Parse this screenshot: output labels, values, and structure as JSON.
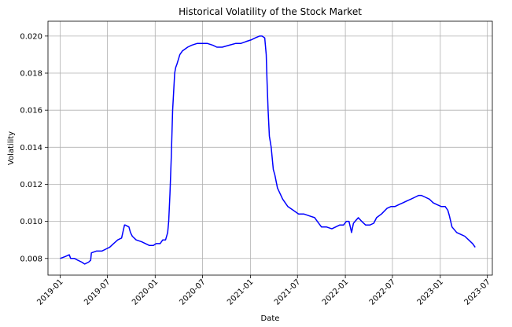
{
  "chart_data": {
    "type": "line",
    "title": "Historical Volatility of the Stock Market",
    "xlabel": "Date",
    "ylabel": "Volatility",
    "grid": true,
    "line_color": "#0000ff",
    "xlim": [
      "2018-11-15",
      "2023-07-20"
    ],
    "ylim": [
      0.0071,
      0.0208
    ],
    "x_ticks": [
      "2019-01",
      "2019-07",
      "2020-01",
      "2020-07",
      "2021-01",
      "2021-07",
      "2022-01",
      "2022-07",
      "2023-01",
      "2023-07"
    ],
    "y_ticks": [
      "0.008",
      "0.010",
      "0.012",
      "0.014",
      "0.016",
      "0.018",
      "0.020"
    ],
    "series": [
      {
        "x": [
          "2019-01-01",
          "2019-01-20",
          "2019-02-05",
          "2019-02-10",
          "2019-02-25",
          "2019-03-10",
          "2019-03-25",
          "2019-04-05",
          "2019-04-20",
          "2019-04-28",
          "2019-05-01",
          "2019-05-20",
          "2019-06-10",
          "2019-06-25",
          "2019-07-10",
          "2019-07-25",
          "2019-08-10",
          "2019-08-25",
          "2019-09-05",
          "2019-09-08",
          "2019-09-22",
          "2019-09-28",
          "2019-10-05",
          "2019-10-20",
          "2019-11-10",
          "2019-11-25",
          "2019-12-10",
          "2019-12-25",
          "2020-01-05",
          "2020-01-20",
          "2020-01-30",
          "2020-02-10",
          "2020-02-18",
          "2020-02-22",
          "2020-02-27",
          "2020-03-03",
          "2020-03-08",
          "2020-03-12",
          "2020-03-16",
          "2020-03-20",
          "2020-03-25",
          "2020-04-05",
          "2020-04-15",
          "2020-04-25",
          "2020-05-05",
          "2020-05-20",
          "2020-06-10",
          "2020-07-01",
          "2020-07-20",
          "2020-08-10",
          "2020-08-25",
          "2020-09-15",
          "2020-10-10",
          "2020-11-05",
          "2020-11-25",
          "2020-12-15",
          "2021-01-05",
          "2021-01-20",
          "2021-02-05",
          "2021-02-15",
          "2021-02-25",
          "2021-03-03",
          "2021-03-06",
          "2021-03-10",
          "2021-03-15",
          "2021-03-22",
          "2021-03-30",
          "2021-04-05",
          "2021-04-15",
          "2021-05-05",
          "2021-05-25",
          "2021-06-15",
          "2021-07-05",
          "2021-07-25",
          "2021-08-15",
          "2021-09-05",
          "2021-09-15",
          "2021-10-01",
          "2021-10-20",
          "2021-11-10",
          "2021-11-25",
          "2021-12-10",
          "2021-12-25",
          "2022-01-05",
          "2022-01-15",
          "2022-01-20",
          "2022-01-25",
          "2022-02-01",
          "2022-02-20",
          "2022-03-05",
          "2022-03-20",
          "2022-04-05",
          "2022-04-20",
          "2022-05-01",
          "2022-05-20",
          "2022-06-10",
          "2022-06-25",
          "2022-07-10",
          "2022-07-25",
          "2022-08-10",
          "2022-08-25",
          "2022-09-10",
          "2022-09-25",
          "2022-10-10",
          "2022-10-20",
          "2022-11-05",
          "2022-11-20",
          "2022-12-05",
          "2022-12-20",
          "2023-01-05",
          "2023-01-20",
          "2023-01-30",
          "2023-02-05",
          "2023-02-15",
          "2023-03-05",
          "2023-03-20",
          "2023-04-05",
          "2023-04-20",
          "2023-05-05",
          "2023-05-15"
        ],
        "y": [
          0.008,
          0.0081,
          0.0082,
          0.008,
          0.008,
          0.0079,
          0.0078,
          0.0077,
          0.0078,
          0.0079,
          0.0083,
          0.0084,
          0.0084,
          0.0085,
          0.0086,
          0.0088,
          0.009,
          0.0091,
          0.0098,
          0.0098,
          0.0097,
          0.0094,
          0.0092,
          0.009,
          0.0089,
          0.0088,
          0.0087,
          0.0087,
          0.0088,
          0.0088,
          0.009,
          0.009,
          0.0094,
          0.01,
          0.0115,
          0.0135,
          0.016,
          0.017,
          0.018,
          0.0183,
          0.0185,
          0.019,
          0.0192,
          0.0193,
          0.0194,
          0.0195,
          0.0196,
          0.0196,
          0.0196,
          0.0195,
          0.0194,
          0.0194,
          0.0195,
          0.0196,
          0.0196,
          0.0197,
          0.0198,
          0.0199,
          0.02,
          0.02,
          0.0199,
          0.019,
          0.0176,
          0.016,
          0.0146,
          0.014,
          0.0128,
          0.0125,
          0.0118,
          0.0112,
          0.0108,
          0.0106,
          0.0104,
          0.0104,
          0.0103,
          0.0102,
          0.01,
          0.0097,
          0.0097,
          0.0096,
          0.0097,
          0.0098,
          0.0098,
          0.01,
          0.01,
          0.0097,
          0.0094,
          0.0099,
          0.0102,
          0.01,
          0.0098,
          0.0098,
          0.0099,
          0.0102,
          0.0104,
          0.0107,
          0.0108,
          0.0108,
          0.0109,
          0.011,
          0.0111,
          0.0112,
          0.0113,
          0.0114,
          0.0114,
          0.0113,
          0.0112,
          0.011,
          0.0109,
          0.0108,
          0.0108,
          0.0106,
          0.0103,
          0.0097,
          0.0094,
          0.0093,
          0.0092,
          0.009,
          0.0088,
          0.0086
        ]
      }
    ]
  }
}
